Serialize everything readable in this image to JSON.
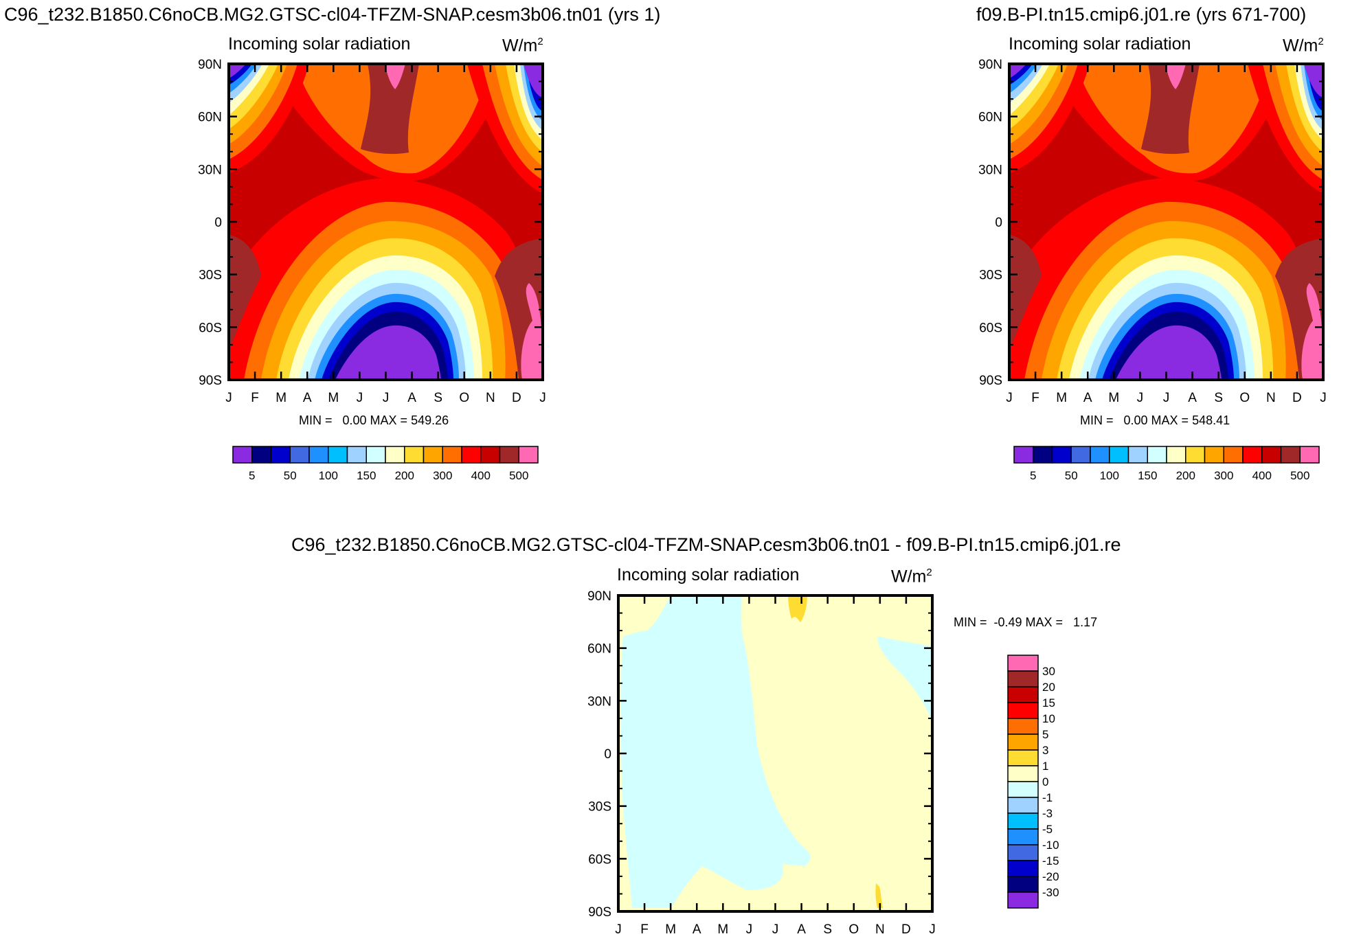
{
  "units_superscript": "2",
  "chart_data": [
    {
      "type": "heatmap",
      "title": "C96_t232.B1850.C6noCB.MG2.GTSC-cl04-TFZM-SNAP.cesm3b06.tn01 (yrs 1)",
      "subtitle": "Incoming solar radiation",
      "units_base": "W/m",
      "x_tick_labels": [
        "J",
        "F",
        "M",
        "A",
        "M",
        "J",
        "J",
        "A",
        "S",
        "O",
        "N",
        "D",
        "J"
      ],
      "y_tick_labels": [
        "90N",
        "60N",
        "30N",
        "0",
        "30S",
        "60S",
        "90S"
      ],
      "stats_text": "MIN =   0.00 MAX = 549.26",
      "colorbar": {
        "orientation": "horizontal",
        "levels": [
          "5",
          "50",
          "100",
          "150",
          "200",
          "300",
          "400",
          "500"
        ],
        "colors": [
          "#8a2be2",
          "#000080",
          "#0000cd",
          "#4169e1",
          "#1e90ff",
          "#00bfff",
          "#a0d2ff",
          "#d2ffff",
          "#ffffc8",
          "#ffdc32",
          "#ffa500",
          "#ff6e00",
          "#ff0000",
          "#c80000",
          "#a02828",
          "#ff69b4"
        ]
      }
    },
    {
      "type": "heatmap",
      "title": "f09.B-PI.tn15.cmip6.j01.re (yrs 671-700)",
      "subtitle": "Incoming solar radiation",
      "units_base": "W/m",
      "x_tick_labels": [
        "J",
        "F",
        "M",
        "A",
        "M",
        "J",
        "J",
        "A",
        "S",
        "O",
        "N",
        "D",
        "J"
      ],
      "y_tick_labels": [
        "90N",
        "60N",
        "30N",
        "0",
        "30S",
        "60S",
        "90S"
      ],
      "stats_text": "MIN =   0.00 MAX = 548.41",
      "colorbar": {
        "orientation": "horizontal",
        "levels": [
          "5",
          "50",
          "100",
          "150",
          "200",
          "300",
          "400",
          "500"
        ],
        "colors": [
          "#8a2be2",
          "#000080",
          "#0000cd",
          "#4169e1",
          "#1e90ff",
          "#00bfff",
          "#a0d2ff",
          "#d2ffff",
          "#ffffc8",
          "#ffdc32",
          "#ffa500",
          "#ff6e00",
          "#ff0000",
          "#c80000",
          "#a02828",
          "#ff69b4"
        ]
      }
    },
    {
      "type": "heatmap",
      "title": "C96_t232.B1850.C6noCB.MG2.GTSC-cl04-TFZM-SNAP.cesm3b06.tn01 - f09.B-PI.tn15.cmip6.j01.re",
      "subtitle": "Incoming solar radiation",
      "units_base": "W/m",
      "x_tick_labels": [
        "J",
        "F",
        "M",
        "A",
        "M",
        "J",
        "J",
        "A",
        "S",
        "O",
        "N",
        "D",
        "J"
      ],
      "y_tick_labels": [
        "90N",
        "60N",
        "30N",
        "0",
        "30S",
        "60S",
        "90S"
      ],
      "stats_text": "MIN =  -0.49 MAX =   1.17",
      "colorbar": {
        "orientation": "vertical",
        "levels": [
          "30",
          "20",
          "15",
          "10",
          "5",
          "3",
          "1",
          "0",
          "-1",
          "-3",
          "-5",
          "-10",
          "-15",
          "-20",
          "-30"
        ],
        "colors": [
          "#ff69b4",
          "#a02828",
          "#c80000",
          "#ff0000",
          "#ff6e00",
          "#ffa500",
          "#ffdc32",
          "#ffffc8",
          "#d2ffff",
          "#a0d2ff",
          "#00bfff",
          "#1e90ff",
          "#4169e1",
          "#0000cd",
          "#000080",
          "#8a2be2"
        ]
      }
    }
  ]
}
